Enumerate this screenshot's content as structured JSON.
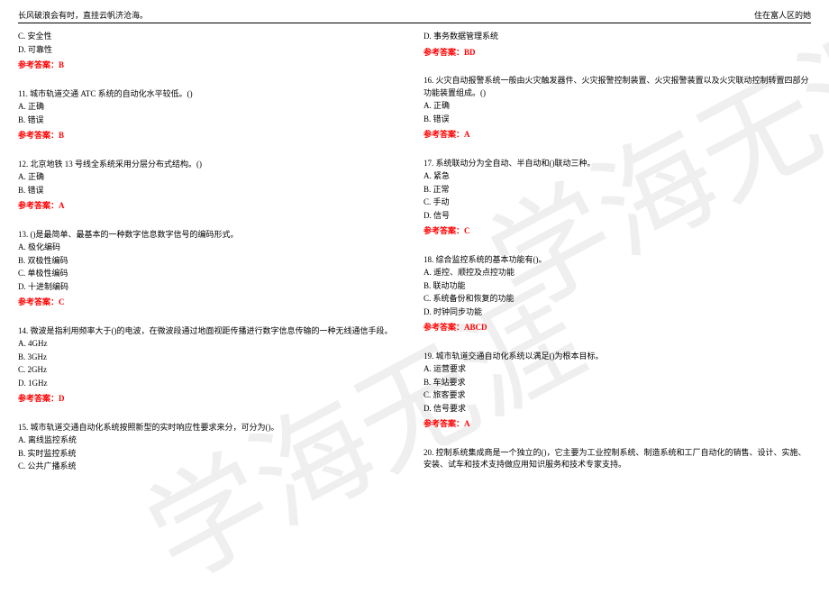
{
  "watermark": "学海无涯",
  "header": {
    "left": "长风破浪会有时，直挂云帆济沧海。",
    "right": "住在富人区的她"
  },
  "colors": {
    "text": "#000000",
    "answer": "#ff0000",
    "watermark": "rgba(180,180,180,0.22)",
    "background": "#ffffff",
    "rule": "#000000"
  },
  "left_column": [
    {
      "lines": [
        "C. 安全性",
        "D. 可靠性"
      ],
      "answer": "参考答案：B"
    },
    {
      "lines": [
        "11. 城市轨道交通 ATC 系统的自动化水平较低。()",
        "A. 正确",
        "B. 错误"
      ],
      "answer": "参考答案：B"
    },
    {
      "lines": [
        "12. 北京地铁 13 号线全系统采用分层分布式结构。()",
        "A. 正确",
        "B. 错误"
      ],
      "answer": "参考答案：A"
    },
    {
      "lines": [
        "13. ()是最简单、最基本的一种数字信息数字信号的编码形式。",
        "A. 极化编码",
        "B. 双极性编码",
        "C. 单极性编码",
        "D. 十进制编码"
      ],
      "answer": "参考答案：C"
    },
    {
      "lines": [
        "14. 微波是指利用频率大于()的电波，在微波段通过地面视距传播进行数字信息传输的一种无线通信手段。",
        "A. 4GHz",
        "B. 3GHz",
        "C. 2GHz",
        "D. 1GHz"
      ],
      "answer": "参考答案：D"
    },
    {
      "lines": [
        "15. 城市轨道交通自动化系统按照新型的实时响应性要求来分，可分为()。",
        "A. 离线监控系统",
        "B. 实时监控系统",
        "C. 公共广播系统"
      ],
      "answer": null
    }
  ],
  "right_column": [
    {
      "lines": [
        "D. 事务数据管理系统"
      ],
      "answer": "参考答案：BD"
    },
    {
      "lines": [
        "16. 火灾自动报警系统一般由火灾触发器件、火灾报警控制装置、火灾报警装置以及火灾联动控制转置四部分功能装置组成。()",
        "A. 正确",
        "B. 错误"
      ],
      "answer": "参考答案：A"
    },
    {
      "lines": [
        "17. 系统联动分为全自动、半自动和()联动三种。",
        "A. 紧急",
        "B. 正常",
        "C. 手动",
        "D. 信号"
      ],
      "answer": "参考答案：C"
    },
    {
      "lines": [
        "18. 综合监控系统的基本功能有()。",
        "A. 遥控、顺控及点控功能",
        "B. 联动功能",
        "C. 系统备份和恢复的功能",
        "D. 时钟同步功能"
      ],
      "answer": "参考答案：ABCD"
    },
    {
      "lines": [
        "19. 城市轨道交通自动化系统以满足()为根本目标。",
        "A. 运营要求",
        "B. 车站要求",
        "C. 旅客要求",
        "D. 信号要求"
      ],
      "answer": "参考答案：A"
    },
    {
      "lines": [
        "20. 控制系统集成商是一个独立的()，它主要为工业控制系统、制造系统和工厂自动化的销售、设计、实施、安装、试车和技术支持做应用知识服务和技术专家支持。"
      ],
      "answer": null
    }
  ]
}
